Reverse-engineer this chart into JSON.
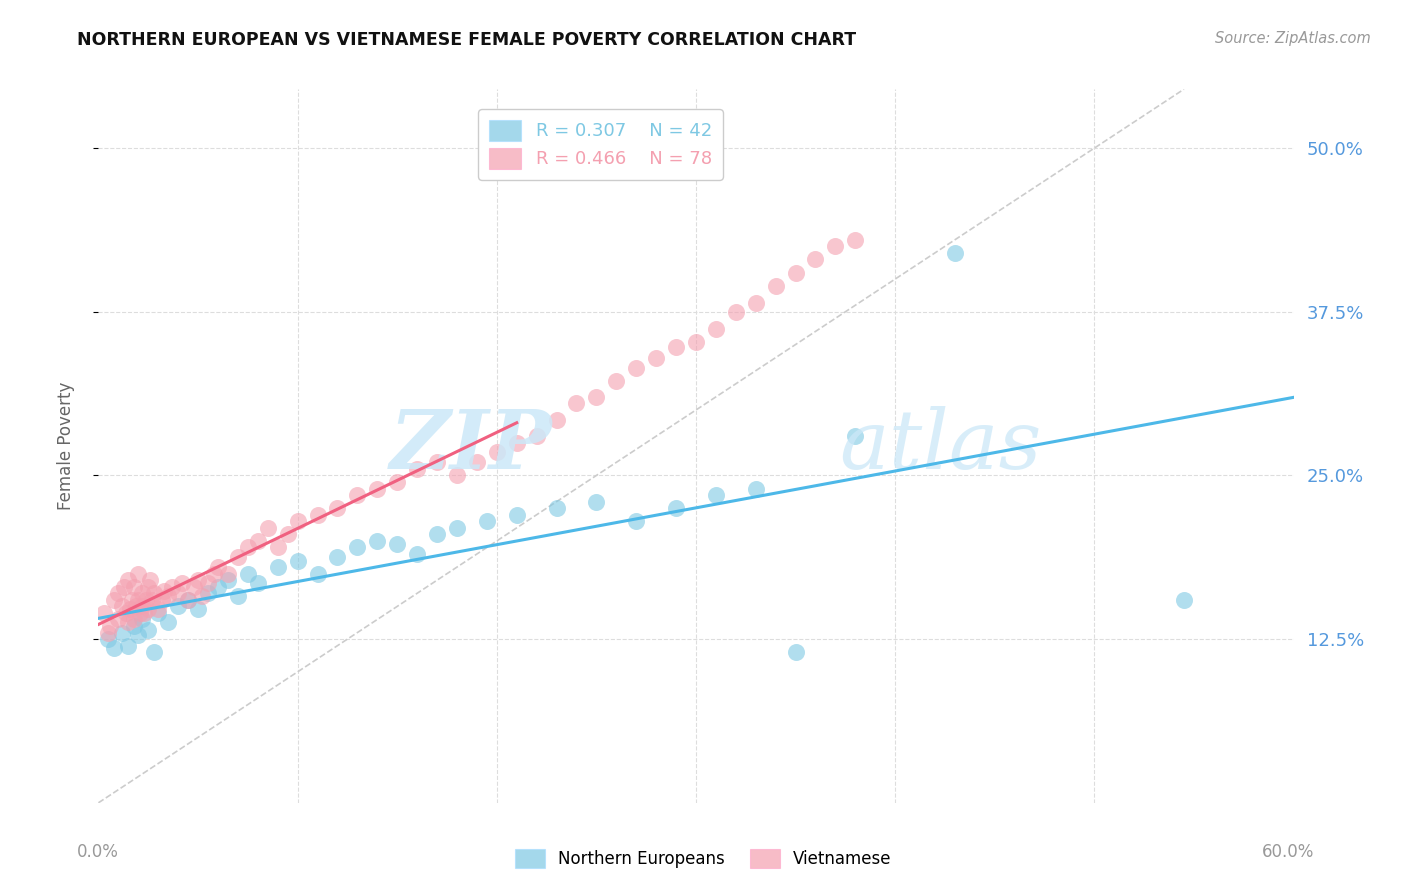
{
  "title": "NORTHERN EUROPEAN VS VIETNAMESE FEMALE POVERTY CORRELATION CHART",
  "source": "Source: ZipAtlas.com",
  "ylabel": "Female Poverty",
  "ytick_labels": [
    "50.0%",
    "37.5%",
    "25.0%",
    "12.5%"
  ],
  "ytick_values": [
    0.5,
    0.375,
    0.25,
    0.125
  ],
  "xmin": 0.0,
  "xmax": 0.6,
  "ymin": 0.0,
  "ymax": 0.545,
  "northern_european_color": "#7ec8e3",
  "vietnamese_color": "#f4a0b0",
  "ne_line_color": "#4db8e8",
  "viet_line_color": "#f06080",
  "diag_color": "#cccccc",
  "grid_color": "#dddddd",
  "watermark_color": "#cce8f8",
  "ne_x": [
    0.005,
    0.008,
    0.012,
    0.015,
    0.018,
    0.02,
    0.022,
    0.025,
    0.028,
    0.03,
    0.035,
    0.04,
    0.045,
    0.05,
    0.055,
    0.06,
    0.065,
    0.07,
    0.075,
    0.08,
    0.09,
    0.1,
    0.11,
    0.12,
    0.13,
    0.14,
    0.15,
    0.16,
    0.17,
    0.18,
    0.195,
    0.21,
    0.23,
    0.25,
    0.27,
    0.29,
    0.31,
    0.33,
    0.35,
    0.38,
    0.43,
    0.545
  ],
  "ne_y": [
    0.125,
    0.118,
    0.13,
    0.12,
    0.135,
    0.128,
    0.14,
    0.132,
    0.115,
    0.145,
    0.138,
    0.15,
    0.155,
    0.148,
    0.16,
    0.165,
    0.17,
    0.158,
    0.175,
    0.168,
    0.18,
    0.185,
    0.175,
    0.188,
    0.195,
    0.2,
    0.198,
    0.19,
    0.205,
    0.21,
    0.215,
    0.22,
    0.225,
    0.23,
    0.215,
    0.225,
    0.235,
    0.24,
    0.115,
    0.28,
    0.42,
    0.155
  ],
  "viet_x": [
    0.003,
    0.005,
    0.006,
    0.008,
    0.01,
    0.01,
    0.012,
    0.013,
    0.014,
    0.015,
    0.015,
    0.016,
    0.017,
    0.018,
    0.018,
    0.019,
    0.02,
    0.02,
    0.021,
    0.022,
    0.022,
    0.023,
    0.024,
    0.025,
    0.025,
    0.026,
    0.027,
    0.028,
    0.03,
    0.032,
    0.033,
    0.035,
    0.037,
    0.04,
    0.042,
    0.045,
    0.048,
    0.05,
    0.052,
    0.055,
    0.058,
    0.06,
    0.065,
    0.07,
    0.075,
    0.08,
    0.085,
    0.09,
    0.095,
    0.1,
    0.11,
    0.12,
    0.13,
    0.14,
    0.15,
    0.16,
    0.17,
    0.18,
    0.19,
    0.2,
    0.21,
    0.22,
    0.23,
    0.24,
    0.25,
    0.26,
    0.27,
    0.28,
    0.29,
    0.3,
    0.31,
    0.32,
    0.33,
    0.34,
    0.35,
    0.36,
    0.37,
    0.38
  ],
  "viet_y": [
    0.145,
    0.13,
    0.135,
    0.155,
    0.14,
    0.16,
    0.15,
    0.165,
    0.145,
    0.138,
    0.17,
    0.148,
    0.155,
    0.14,
    0.165,
    0.15,
    0.155,
    0.175,
    0.145,
    0.15,
    0.16,
    0.145,
    0.155,
    0.148,
    0.165,
    0.17,
    0.155,
    0.16,
    0.148,
    0.155,
    0.162,
    0.158,
    0.165,
    0.16,
    0.168,
    0.155,
    0.165,
    0.17,
    0.158,
    0.168,
    0.175,
    0.18,
    0.175,
    0.188,
    0.195,
    0.2,
    0.21,
    0.195,
    0.205,
    0.215,
    0.22,
    0.225,
    0.235,
    0.24,
    0.245,
    0.255,
    0.26,
    0.25,
    0.26,
    0.268,
    0.275,
    0.28,
    0.292,
    0.305,
    0.31,
    0.322,
    0.332,
    0.34,
    0.348,
    0.352,
    0.362,
    0.375,
    0.382,
    0.395,
    0.405,
    0.415,
    0.425,
    0.43
  ],
  "ne_line_x": [
    0.0,
    0.6
  ],
  "ne_line_y": [
    0.145,
    0.3
  ],
  "viet_line_x": [
    0.0,
    0.21
  ],
  "viet_line_y": [
    0.145,
    0.34
  ]
}
